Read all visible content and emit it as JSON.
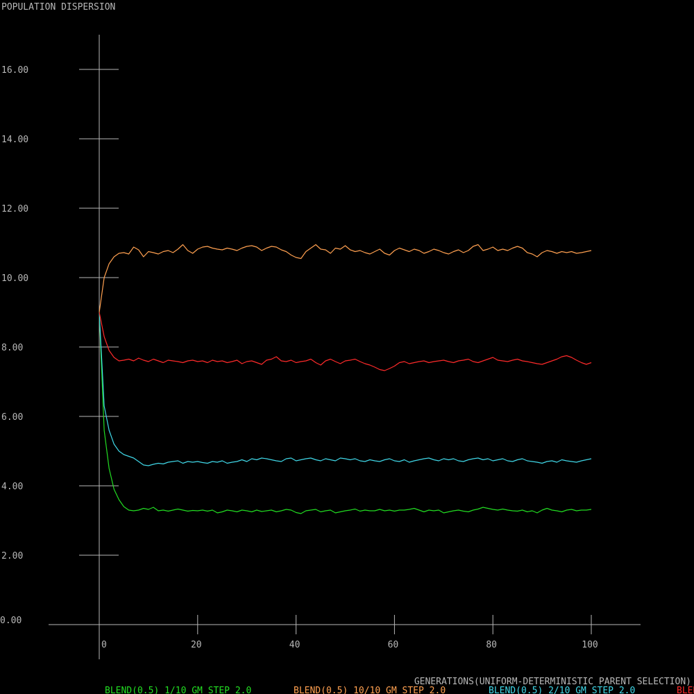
{
  "chart_data": {
    "type": "line",
    "title": "POPULATION DISPERSION",
    "xlabel": "GENERATIONS(UNIFORM-DETERMINISTIC PARENT SELECTION)",
    "ylabel": "",
    "xlim": [
      0,
      100
    ],
    "ylim": [
      0,
      16
    ],
    "x_ticks": [
      "0",
      "20",
      "40",
      "60",
      "80",
      "100"
    ],
    "y_ticks": [
      "0.00",
      "2.00",
      "4.00",
      "6.00",
      "8.00",
      "10.00",
      "12.00",
      "14.00",
      "16.00"
    ],
    "grid": false,
    "legend_position": "bottom",
    "series": [
      {
        "name": "BLEND(0.5) 1/10 GM STEP 2.0",
        "color": "#22dd22",
        "values": [
          9.0,
          5.6,
          4.5,
          3.9,
          3.6,
          3.4,
          3.3,
          3.28,
          3.3,
          3.35,
          3.32,
          3.38,
          3.28,
          3.3,
          3.27,
          3.3,
          3.33,
          3.3,
          3.27,
          3.29,
          3.28,
          3.3,
          3.27,
          3.3,
          3.22,
          3.25,
          3.3,
          3.28,
          3.25,
          3.3,
          3.28,
          3.25,
          3.3,
          3.26,
          3.28,
          3.3,
          3.25,
          3.28,
          3.32,
          3.3,
          3.23,
          3.2,
          3.28,
          3.3,
          3.32,
          3.25,
          3.28,
          3.3,
          3.22,
          3.25,
          3.28,
          3.3,
          3.33,
          3.27,
          3.3,
          3.28,
          3.28,
          3.32,
          3.28,
          3.3,
          3.27,
          3.3,
          3.3,
          3.32,
          3.35,
          3.3,
          3.25,
          3.3,
          3.28,
          3.3,
          3.22,
          3.25,
          3.28,
          3.3,
          3.27,
          3.25,
          3.3,
          3.33,
          3.38,
          3.35,
          3.32,
          3.3,
          3.33,
          3.3,
          3.28,
          3.27,
          3.3,
          3.25,
          3.28,
          3.22,
          3.3,
          3.35,
          3.3,
          3.28,
          3.25,
          3.3,
          3.32,
          3.28,
          3.3,
          3.3,
          3.32
        ]
      },
      {
        "name": "BLEND(0.5) 10/10 GM STEP 2.0",
        "color": "#ffa050",
        "values": [
          9.0,
          10.0,
          10.4,
          10.6,
          10.7,
          10.72,
          10.68,
          10.88,
          10.8,
          10.6,
          10.75,
          10.72,
          10.68,
          10.75,
          10.78,
          10.72,
          10.82,
          10.95,
          10.78,
          10.7,
          10.82,
          10.88,
          10.9,
          10.85,
          10.82,
          10.8,
          10.85,
          10.82,
          10.78,
          10.85,
          10.9,
          10.92,
          10.88,
          10.78,
          10.85,
          10.9,
          10.88,
          10.8,
          10.75,
          10.65,
          10.58,
          10.55,
          10.75,
          10.85,
          10.95,
          10.82,
          10.8,
          10.7,
          10.85,
          10.82,
          10.92,
          10.8,
          10.75,
          10.78,
          10.72,
          10.68,
          10.75,
          10.82,
          10.7,
          10.65,
          10.78,
          10.85,
          10.8,
          10.75,
          10.82,
          10.78,
          10.7,
          10.75,
          10.82,
          10.78,
          10.72,
          10.68,
          10.75,
          10.8,
          10.72,
          10.78,
          10.9,
          10.95,
          10.78,
          10.82,
          10.88,
          10.78,
          10.82,
          10.78,
          10.85,
          10.9,
          10.85,
          10.72,
          10.68,
          10.6,
          10.72,
          10.78,
          10.75,
          10.7,
          10.75,
          10.72,
          10.75,
          10.7,
          10.72,
          10.75,
          10.78
        ]
      },
      {
        "name": "BLEND(0.5) 2/10 GM STEP 2.0",
        "color": "#40d8e8",
        "values": [
          9.0,
          6.3,
          5.6,
          5.2,
          5.0,
          4.9,
          4.85,
          4.8,
          4.7,
          4.6,
          4.58,
          4.62,
          4.65,
          4.63,
          4.68,
          4.7,
          4.72,
          4.65,
          4.7,
          4.68,
          4.7,
          4.67,
          4.65,
          4.7,
          4.68,
          4.72,
          4.65,
          4.68,
          4.7,
          4.75,
          4.7,
          4.78,
          4.75,
          4.8,
          4.78,
          4.75,
          4.72,
          4.7,
          4.78,
          4.8,
          4.72,
          4.75,
          4.78,
          4.8,
          4.75,
          4.72,
          4.78,
          4.75,
          4.72,
          4.8,
          4.78,
          4.75,
          4.78,
          4.72,
          4.7,
          4.75,
          4.72,
          4.7,
          4.75,
          4.78,
          4.72,
          4.7,
          4.75,
          4.68,
          4.72,
          4.75,
          4.78,
          4.8,
          4.75,
          4.72,
          4.78,
          4.75,
          4.78,
          4.72,
          4.7,
          4.75,
          4.78,
          4.8,
          4.75,
          4.78,
          4.72,
          4.75,
          4.78,
          4.72,
          4.7,
          4.75,
          4.78,
          4.72,
          4.7,
          4.68,
          4.65,
          4.7,
          4.72,
          4.68,
          4.75,
          4.72,
          4.7,
          4.68,
          4.72,
          4.75,
          4.78
        ]
      },
      {
        "name": "BLEND",
        "color": "#ff2a2a",
        "values": [
          9.0,
          8.3,
          7.9,
          7.7,
          7.6,
          7.62,
          7.65,
          7.6,
          7.68,
          7.62,
          7.58,
          7.65,
          7.6,
          7.55,
          7.62,
          7.6,
          7.58,
          7.55,
          7.6,
          7.62,
          7.58,
          7.6,
          7.55,
          7.62,
          7.58,
          7.6,
          7.55,
          7.58,
          7.62,
          7.52,
          7.58,
          7.6,
          7.55,
          7.5,
          7.62,
          7.65,
          7.72,
          7.6,
          7.58,
          7.62,
          7.55,
          7.58,
          7.6,
          7.65,
          7.55,
          7.48,
          7.6,
          7.65,
          7.58,
          7.52,
          7.6,
          7.62,
          7.65,
          7.58,
          7.52,
          7.48,
          7.42,
          7.35,
          7.32,
          7.38,
          7.45,
          7.55,
          7.58,
          7.52,
          7.55,
          7.58,
          7.6,
          7.55,
          7.58,
          7.6,
          7.62,
          7.58,
          7.55,
          7.6,
          7.62,
          7.65,
          7.58,
          7.55,
          7.6,
          7.65,
          7.7,
          7.62,
          7.6,
          7.58,
          7.62,
          7.65,
          7.6,
          7.58,
          7.55,
          7.52,
          7.5,
          7.55,
          7.6,
          7.65,
          7.72,
          7.75,
          7.7,
          7.62,
          7.55,
          7.5,
          7.55
        ]
      }
    ]
  }
}
